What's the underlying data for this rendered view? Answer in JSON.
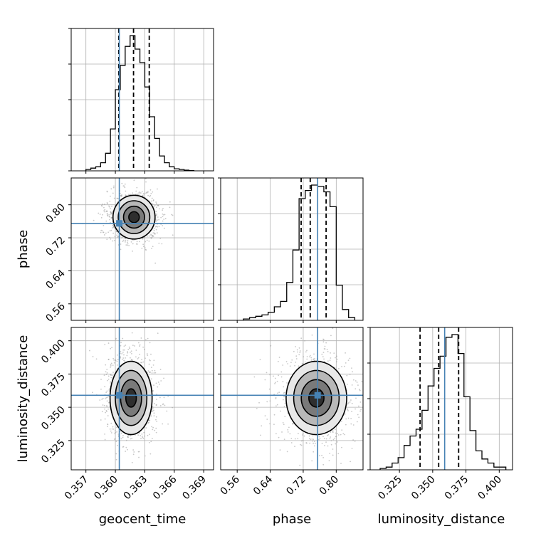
{
  "chart_data": {
    "type": "corner",
    "parameters": [
      "geocent_time",
      "phase",
      "luminosity_distance"
    ],
    "axis_labels": {
      "geocent_time": "geocent_time",
      "phase": "phase",
      "luminosity_distance": "luminosity_distance"
    },
    "ranges": {
      "geocent_time": [
        0.3555,
        0.37
      ],
      "phase": [
        0.52,
        0.865
      ],
      "luminosity_distance": [
        0.303,
        0.41
      ]
    },
    "ticks": {
      "geocent_time": [
        0.357,
        0.36,
        0.363,
        0.366,
        0.369
      ],
      "phase": [
        0.56,
        0.64,
        0.72,
        0.8
      ],
      "luminosity_distance": [
        0.325,
        0.35,
        0.375,
        0.4
      ]
    },
    "tick_labels": {
      "geocent_time": [
        "0.357",
        "0.360",
        "0.363",
        "0.366",
        "0.369"
      ],
      "phase": [
        "0.56",
        "0.64",
        "0.72",
        "0.80"
      ],
      "luminosity_distance": [
        "0.325",
        "0.350",
        "0.375",
        "0.400"
      ]
    },
    "truth": {
      "geocent_time": 0.3604,
      "phase": 0.755,
      "luminosity_distance": 0.359
    },
    "quantiles": {
      "geocent_time": [
        0.36035,
        0.36185,
        0.36345
      ],
      "phase": [
        0.715,
        0.737,
        0.7755
      ],
      "luminosity_distance": [
        0.3405,
        0.3545,
        0.3695
      ]
    },
    "histograms": {
      "geocent_time": {
        "edges": [
          0.357,
          0.3575,
          0.358,
          0.3585,
          0.359,
          0.3595,
          0.36,
          0.3605,
          0.361,
          0.3615,
          0.362,
          0.3625,
          0.363,
          0.3635,
          0.364,
          0.3645,
          0.365,
          0.3655,
          0.366,
          0.3665,
          0.367,
          0.3675,
          0.368
        ],
        "counts": [
          0.01,
          0.02,
          0.03,
          0.06,
          0.13,
          0.31,
          0.6,
          0.78,
          0.92,
          1.0,
          0.9,
          0.8,
          0.62,
          0.4,
          0.24,
          0.11,
          0.06,
          0.03,
          0.015,
          0.01,
          0.005,
          0.002
        ]
      },
      "phase": {
        "edges": [
          0.575,
          0.59,
          0.605,
          0.62,
          0.635,
          0.65,
          0.665,
          0.68,
          0.695,
          0.71,
          0.725,
          0.74,
          0.755,
          0.77,
          0.785,
          0.8,
          0.815,
          0.83,
          0.845
        ],
        "counts": [
          0.01,
          0.02,
          0.03,
          0.04,
          0.06,
          0.1,
          0.14,
          0.28,
          0.52,
          0.9,
          0.96,
          1.0,
          0.99,
          0.95,
          0.84,
          0.26,
          0.08,
          0.02
        ]
      },
      "luminosity_distance": {
        "edges": [
          0.3105,
          0.315,
          0.3195,
          0.324,
          0.3285,
          0.333,
          0.3375,
          0.342,
          0.3465,
          0.351,
          0.3555,
          0.36,
          0.3645,
          0.369,
          0.3735,
          0.378,
          0.3825,
          0.387,
          0.3915,
          0.396,
          0.4005,
          0.405
        ],
        "counts": [
          0.01,
          0.02,
          0.05,
          0.09,
          0.18,
          0.25,
          0.3,
          0.44,
          0.62,
          0.75,
          0.84,
          0.98,
          1.0,
          0.86,
          0.54,
          0.29,
          0.14,
          0.08,
          0.05,
          0.02,
          0.02
        ]
      }
    },
    "contours_2d": {
      "phase_vs_geocent_time": {
        "center": [
          0.3619,
          0.77
        ],
        "sigma": [
          0.00105,
          0.026
        ],
        "levels": [
          0.5,
          1.0,
          1.5,
          2.0
        ]
      },
      "luminosity_distance_vs_geocent_time": {
        "center": [
          0.3616,
          0.357
        ],
        "sigma": [
          0.00105,
          0.0135
        ],
        "levels": [
          0.5,
          1.0,
          1.5,
          2.0
        ]
      },
      "luminosity_distance_vs_phase": {
        "center": [
          0.752,
          0.357
        ],
        "sigma": [
          0.036,
          0.0135
        ],
        "levels": [
          0.5,
          1.0,
          1.5,
          2.0
        ]
      }
    },
    "grid": true,
    "colors": {
      "histogram": "#000000",
      "truth": "#4682b4",
      "quantile": "#000000",
      "grid": "#b0b0b0",
      "scatter": "#9a9a9a"
    }
  }
}
